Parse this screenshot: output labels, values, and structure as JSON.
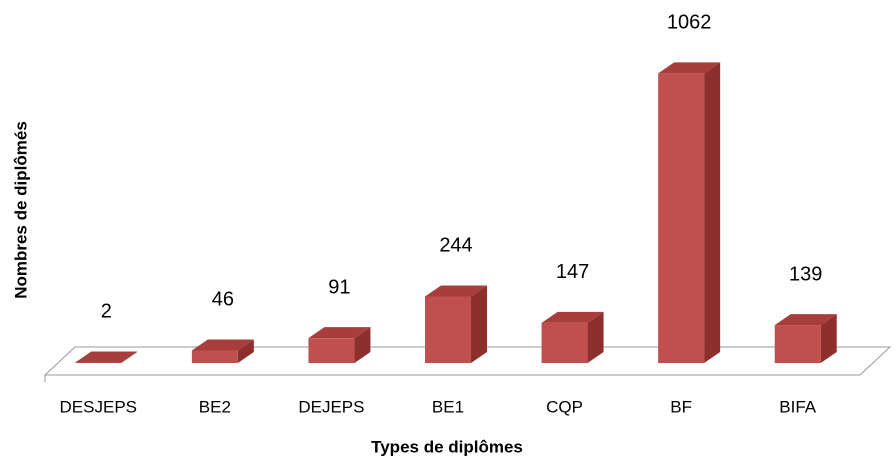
{
  "chart_data": {
    "type": "bar3d",
    "categories": [
      "DESJEPS",
      "BE2",
      "DEJEPS",
      "BE1",
      "CQP",
      "BF",
      "BIFA"
    ],
    "values": [
      2,
      46,
      91,
      244,
      147,
      1062,
      139
    ],
    "color": "#c0504d",
    "xlabel": "Types de diplômes",
    "ylabel": "Nombres de diplômés",
    "ylim": [
      0,
      1100
    ]
  }
}
